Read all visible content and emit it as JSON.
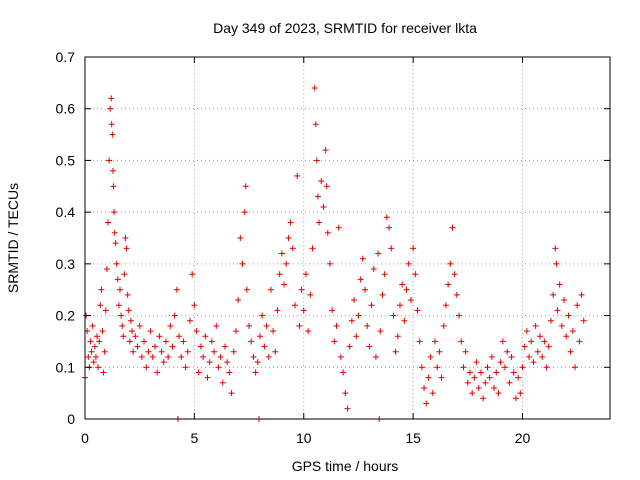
{
  "chart_data": {
    "type": "scatter",
    "title": "Day 349 of 2023, SRMTID for receiver lkta",
    "xlabel": "GPS time / hours",
    "ylabel": "SRMTID / TECUs",
    "xlim": [
      0,
      24
    ],
    "ylim": [
      0,
      0.7
    ],
    "xticks": [
      0,
      5,
      10,
      15,
      20
    ],
    "yticks": [
      0,
      0.1,
      0.2,
      0.3,
      0.4,
      0.5,
      0.6,
      0.7
    ],
    "xtick_labels": [
      "0",
      "5",
      "10",
      "15",
      "20"
    ],
    "ytick_labels": [
      "0",
      "0.1",
      "0.2",
      "0.3",
      "0.4",
      "0.5",
      "0.6",
      "0.7"
    ],
    "grid": true,
    "marker": "plus",
    "color": "#e00000",
    "series": [
      {
        "name": "SRMTID",
        "points": [
          [
            0.0,
            0.08
          ],
          [
            0.05,
            0.2
          ],
          [
            0.1,
            0.17
          ],
          [
            0.15,
            0.12
          ],
          [
            0.2,
            0.1
          ],
          [
            0.25,
            0.15
          ],
          [
            0.3,
            0.13
          ],
          [
            0.35,
            0.18
          ],
          [
            0.4,
            0.11
          ],
          [
            0.45,
            0.14
          ],
          [
            0.5,
            0.12
          ],
          [
            0.55,
            0.16
          ],
          [
            0.6,
            0.1
          ],
          [
            0.65,
            0.15
          ],
          [
            0.7,
            0.22
          ],
          [
            0.75,
            0.25
          ],
          [
            0.8,
            0.17
          ],
          [
            0.85,
            0.09
          ],
          [
            0.9,
            0.13
          ],
          [
            0.95,
            0.21
          ],
          [
            1.0,
            0.29
          ],
          [
            1.05,
            0.38
          ],
          [
            1.1,
            0.5
          ],
          [
            1.15,
            0.6
          ],
          [
            1.2,
            0.62
          ],
          [
            1.22,
            0.57
          ],
          [
            1.25,
            0.55
          ],
          [
            1.28,
            0.48
          ],
          [
            1.3,
            0.45
          ],
          [
            1.33,
            0.4
          ],
          [
            1.36,
            0.36
          ],
          [
            1.4,
            0.34
          ],
          [
            1.45,
            0.3
          ],
          [
            1.5,
            0.27
          ],
          [
            1.55,
            0.22
          ],
          [
            1.6,
            0.25
          ],
          [
            1.65,
            0.2
          ],
          [
            1.7,
            0.18
          ],
          [
            1.75,
            0.16
          ],
          [
            1.8,
            0.28
          ],
          [
            1.85,
            0.35
          ],
          [
            1.9,
            0.33
          ],
          [
            1.95,
            0.24
          ],
          [
            2.0,
            0.21
          ],
          [
            2.05,
            0.15
          ],
          [
            2.1,
            0.19
          ],
          [
            2.15,
            0.17
          ],
          [
            2.2,
            0.13
          ],
          [
            2.3,
            0.16
          ],
          [
            2.4,
            0.14
          ],
          [
            2.5,
            0.18
          ],
          [
            2.6,
            0.12
          ],
          [
            2.7,
            0.15
          ],
          [
            2.8,
            0.1
          ],
          [
            2.9,
            0.13
          ],
          [
            3.0,
            0.17
          ],
          [
            3.1,
            0.12
          ],
          [
            3.2,
            0.14
          ],
          [
            3.3,
            0.09
          ],
          [
            3.4,
            0.16
          ],
          [
            3.5,
            0.13
          ],
          [
            3.6,
            0.11
          ],
          [
            3.7,
            0.15
          ],
          [
            3.8,
            0.12
          ],
          [
            3.9,
            0.18
          ],
          [
            4.0,
            0.14
          ],
          [
            4.1,
            0.2
          ],
          [
            4.2,
            0.25
          ],
          [
            4.25,
            0.0
          ],
          [
            4.3,
            0.16
          ],
          [
            4.4,
            0.12
          ],
          [
            4.5,
            0.15
          ],
          [
            4.6,
            0.1
          ],
          [
            4.7,
            0.13
          ],
          [
            4.8,
            0.19
          ],
          [
            4.9,
            0.28
          ],
          [
            5.0,
            0.22
          ],
          [
            5.1,
            0.17
          ],
          [
            5.2,
            0.09
          ],
          [
            5.3,
            0.14
          ],
          [
            5.4,
            0.12
          ],
          [
            5.5,
            0.16
          ],
          [
            5.6,
            0.08
          ],
          [
            5.7,
            0.11
          ],
          [
            5.8,
            0.15
          ],
          [
            5.9,
            0.13
          ],
          [
            6.0,
            0.18
          ],
          [
            6.1,
            0.1
          ],
          [
            6.2,
            0.12
          ],
          [
            6.3,
            0.07
          ],
          [
            6.4,
            0.14
          ],
          [
            6.5,
            0.11
          ],
          [
            6.6,
            0.09
          ],
          [
            6.7,
            0.05
          ],
          [
            6.8,
            0.13
          ],
          [
            6.9,
            0.17
          ],
          [
            7.0,
            0.23
          ],
          [
            7.1,
            0.35
          ],
          [
            7.2,
            0.3
          ],
          [
            7.3,
            0.4
          ],
          [
            7.35,
            0.45
          ],
          [
            7.4,
            0.25
          ],
          [
            7.5,
            0.18
          ],
          [
            7.6,
            0.15
          ],
          [
            7.7,
            0.12
          ],
          [
            7.8,
            0.09
          ],
          [
            7.9,
            0.11
          ],
          [
            7.95,
            0.0
          ],
          [
            8.0,
            0.16
          ],
          [
            8.1,
            0.2
          ],
          [
            8.2,
            0.14
          ],
          [
            8.3,
            0.18
          ],
          [
            8.4,
            0.12
          ],
          [
            8.5,
            0.25
          ],
          [
            8.6,
            0.17
          ],
          [
            8.7,
            0.13
          ],
          [
            8.8,
            0.21
          ],
          [
            8.9,
            0.28
          ],
          [
            9.0,
            0.32
          ],
          [
            9.1,
            0.26
          ],
          [
            9.2,
            0.3
          ],
          [
            9.3,
            0.35
          ],
          [
            9.4,
            0.38
          ],
          [
            9.5,
            0.33
          ],
          [
            9.6,
            0.22
          ],
          [
            9.7,
            0.47
          ],
          [
            9.8,
            0.18
          ],
          [
            9.9,
            0.25
          ],
          [
            10.0,
            0.21
          ],
          [
            10.1,
            0.28
          ],
          [
            10.2,
            0.17
          ],
          [
            10.3,
            0.24
          ],
          [
            10.4,
            0.33
          ],
          [
            10.5,
            0.64
          ],
          [
            10.55,
            0.57
          ],
          [
            10.6,
            0.5
          ],
          [
            10.65,
            0.43
          ],
          [
            10.7,
            0.38
          ],
          [
            10.8,
            0.46
          ],
          [
            10.9,
            0.41
          ],
          [
            11.0,
            0.52
          ],
          [
            11.05,
            0.45
          ],
          [
            11.1,
            0.36
          ],
          [
            11.2,
            0.3
          ],
          [
            11.3,
            0.21
          ],
          [
            11.4,
            0.15
          ],
          [
            11.5,
            0.18
          ],
          [
            11.6,
            0.37
          ],
          [
            11.7,
            0.12
          ],
          [
            11.8,
            0.09
          ],
          [
            11.9,
            0.05
          ],
          [
            12.0,
            0.02
          ],
          [
            12.1,
            0.14
          ],
          [
            12.2,
            0.19
          ],
          [
            12.3,
            0.23
          ],
          [
            12.4,
            0.16
          ],
          [
            12.5,
            0.2
          ],
          [
            12.6,
            0.27
          ],
          [
            12.7,
            0.31
          ],
          [
            12.8,
            0.25
          ],
          [
            12.9,
            0.18
          ],
          [
            13.0,
            0.14
          ],
          [
            13.1,
            0.22
          ],
          [
            13.2,
            0.29
          ],
          [
            13.3,
            0.12
          ],
          [
            13.4,
            0.32
          ],
          [
            13.45,
            0.0
          ],
          [
            13.5,
            0.17
          ],
          [
            13.6,
            0.24
          ],
          [
            13.7,
            0.28
          ],
          [
            13.8,
            0.39
          ],
          [
            13.9,
            0.37
          ],
          [
            14.0,
            0.33
          ],
          [
            14.1,
            0.2
          ],
          [
            14.2,
            0.13
          ],
          [
            14.3,
            0.16
          ],
          [
            14.4,
            0.22
          ],
          [
            14.5,
            0.26
          ],
          [
            14.6,
            0.19
          ],
          [
            14.7,
            0.25
          ],
          [
            14.8,
            0.3
          ],
          [
            14.9,
            0.23
          ],
          [
            15.0,
            0.33
          ],
          [
            15.1,
            0.28
          ],
          [
            15.2,
            0.21
          ],
          [
            15.3,
            0.15
          ],
          [
            15.4,
            0.1
          ],
          [
            15.5,
            0.06
          ],
          [
            15.6,
            0.03
          ],
          [
            15.7,
            0.08
          ],
          [
            15.8,
            0.12
          ],
          [
            15.9,
            0.05
          ],
          [
            16.0,
            0.15
          ],
          [
            16.1,
            0.1
          ],
          [
            16.2,
            0.13
          ],
          [
            16.3,
            0.08
          ],
          [
            16.4,
            0.18
          ],
          [
            16.5,
            0.22
          ],
          [
            16.6,
            0.26
          ],
          [
            16.7,
            0.3
          ],
          [
            16.8,
            0.37
          ],
          [
            16.9,
            0.28
          ],
          [
            17.0,
            0.24
          ],
          [
            17.1,
            0.2
          ],
          [
            17.2,
            0.15
          ],
          [
            17.3,
            0.1
          ],
          [
            17.4,
            0.13
          ],
          [
            17.5,
            0.07
          ],
          [
            17.6,
            0.09
          ],
          [
            17.7,
            0.05
          ],
          [
            17.8,
            0.08
          ],
          [
            17.9,
            0.11
          ],
          [
            18.0,
            0.06
          ],
          [
            18.1,
            0.09
          ],
          [
            18.2,
            0.04
          ],
          [
            18.3,
            0.07
          ],
          [
            18.4,
            0.1
          ],
          [
            18.5,
            0.08
          ],
          [
            18.6,
            0.12
          ],
          [
            18.7,
            0.06
          ],
          [
            18.8,
            0.09
          ],
          [
            18.9,
            0.05
          ],
          [
            19.0,
            0.11
          ],
          [
            19.1,
            0.15
          ],
          [
            19.2,
            0.1
          ],
          [
            19.3,
            0.13
          ],
          [
            19.4,
            0.07
          ],
          [
            19.5,
            0.12
          ],
          [
            19.6,
            0.09
          ],
          [
            19.7,
            0.04
          ],
          [
            19.8,
            0.08
          ],
          [
            19.9,
            0.05
          ],
          [
            20.0,
            0.1
          ],
          [
            20.1,
            0.14
          ],
          [
            20.2,
            0.17
          ],
          [
            20.3,
            0.12
          ],
          [
            20.4,
            0.15
          ],
          [
            20.5,
            0.11
          ],
          [
            20.6,
            0.18
          ],
          [
            20.7,
            0.13
          ],
          [
            20.8,
            0.16
          ],
          [
            20.9,
            0.12
          ],
          [
            21.0,
            0.15
          ],
          [
            21.1,
            0.1
          ],
          [
            21.2,
            0.14
          ],
          [
            21.3,
            0.19
          ],
          [
            21.4,
            0.24
          ],
          [
            21.5,
            0.33
          ],
          [
            21.55,
            0.3
          ],
          [
            21.6,
            0.21
          ],
          [
            21.7,
            0.26
          ],
          [
            21.8,
            0.18
          ],
          [
            21.9,
            0.23
          ],
          [
            22.0,
            0.16
          ],
          [
            22.1,
            0.2
          ],
          [
            22.2,
            0.13
          ],
          [
            22.3,
            0.17
          ],
          [
            22.4,
            0.1
          ],
          [
            22.5,
            0.22
          ],
          [
            22.6,
            0.15
          ],
          [
            22.7,
            0.24
          ],
          [
            22.8,
            0.19
          ]
        ]
      }
    ]
  }
}
